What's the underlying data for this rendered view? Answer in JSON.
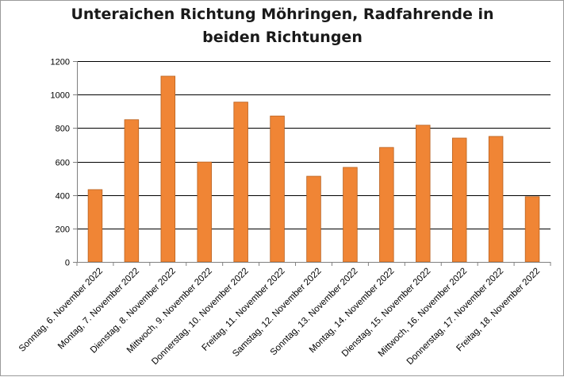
{
  "chart_data": {
    "type": "bar",
    "title_lines": [
      "Unteraichen Richtung Möhringen, Radfahrende in",
      "beiden Richtungen"
    ],
    "xlabel": "",
    "ylabel": "",
    "categories": [
      "Sonntag, 6. November 2022",
      "Montag, 7. November 2022",
      "Dienstag, 8. November 2022",
      "Mittwoch, 9. November 2022",
      "Donnerstag, 10. November 2022",
      "Freitag, 11. November 2022",
      "Samstag, 12. November 2022",
      "Sonntag, 13. November 2022",
      "Montag, 14. November 2022",
      "Dienstag, 15. November 2022",
      "Mittwoch, 16. November 2022",
      "Donnerstag, 17. November 2022",
      "Freitag, 18. November 2022"
    ],
    "values": [
      432,
      850,
      1110,
      597,
      955,
      872,
      512,
      565,
      684,
      817,
      740,
      750,
      390
    ],
    "ylim": [
      0,
      1200
    ],
    "yticks": [
      0,
      200,
      400,
      600,
      800,
      1000,
      1200
    ],
    "grid": true,
    "legend": "none",
    "colors": {
      "bar_fill": "#F08535",
      "bar_stroke": "#B8611F",
      "grid": "#000000",
      "axis": "#808080"
    }
  }
}
